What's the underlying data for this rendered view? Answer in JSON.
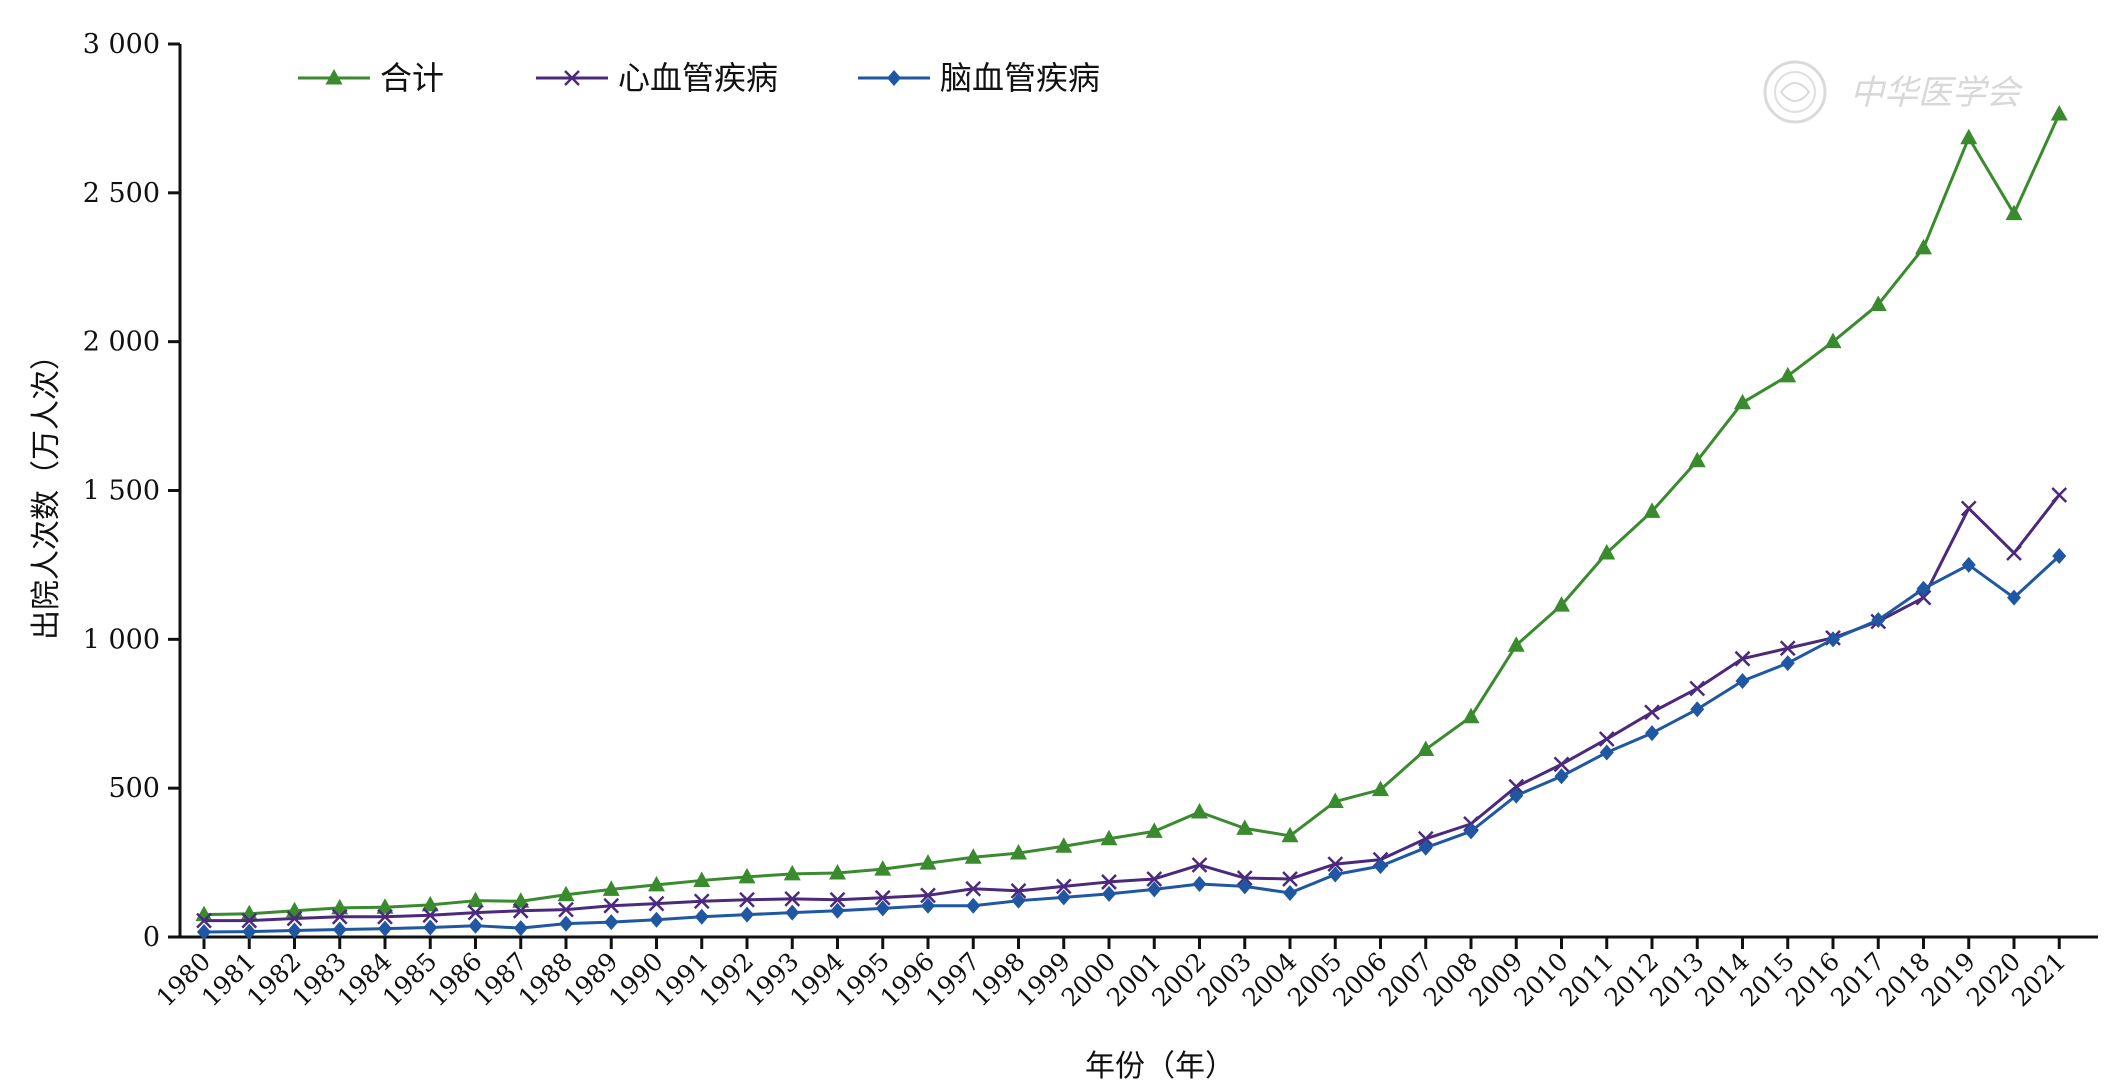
{
  "chart_data": {
    "type": "line",
    "xlabel": "年份（年）",
    "ylabel": "出院人次数（万人次）",
    "ylim": [
      0,
      3000
    ],
    "yticks": [
      0,
      500,
      1000,
      1500,
      2000,
      2500,
      3000
    ],
    "ytick_labels": [
      "0",
      "500",
      "1 000",
      "1 500",
      "2 000",
      "2 500",
      "3 000"
    ],
    "x": [
      "1980",
      "1981",
      "1982",
      "1983",
      "1984",
      "1985",
      "1986",
      "1987",
      "1988",
      "1989",
      "1990",
      "1991",
      "1992",
      "1993",
      "1994",
      "1995",
      "1996",
      "1997",
      "1998",
      "1999",
      "2000",
      "2001",
      "2002",
      "2003",
      "2004",
      "2005",
      "2006",
      "2007",
      "2008",
      "2009",
      "2010",
      "2011",
      "2012",
      "2013",
      "2014",
      "2015",
      "2016",
      "2017",
      "2018",
      "2019",
      "2020",
      "2021"
    ],
    "legend_position": "top-left",
    "grid": false,
    "series": [
      {
        "name": "合计",
        "color": "#3a8a2e",
        "marker": "triangle",
        "values": [
          75,
          78,
          88,
          98,
          100,
          108,
          122,
          120,
          142,
          160,
          175,
          190,
          202,
          212,
          215,
          228,
          248,
          268,
          282,
          305,
          330,
          355,
          420,
          365,
          340,
          455,
          495,
          630,
          740,
          980,
          1115,
          1290,
          1430,
          1600,
          1795,
          1885,
          2000,
          2125,
          2315,
          2685,
          2430,
          2765
        ]
      },
      {
        "name": "心血管疾病",
        "color": "#4b2a7e",
        "marker": "x",
        "values": [
          55,
          55,
          62,
          68,
          68,
          73,
          82,
          88,
          92,
          105,
          112,
          120,
          125,
          128,
          125,
          132,
          140,
          162,
          155,
          170,
          185,
          195,
          242,
          198,
          195,
          245,
          260,
          330,
          380,
          505,
          580,
          665,
          755,
          835,
          935,
          970,
          1005,
          1060,
          1140,
          1440,
          1290,
          1485
        ]
      },
      {
        "name": "脑血管疾病",
        "color": "#1f57a3",
        "marker": "diamond",
        "values": [
          17,
          18,
          22,
          25,
          28,
          32,
          38,
          30,
          45,
          50,
          58,
          68,
          75,
          82,
          88,
          96,
          105,
          105,
          122,
          133,
          145,
          160,
          178,
          170,
          148,
          210,
          238,
          300,
          355,
          475,
          540,
          620,
          685,
          765,
          860,
          920,
          1000,
          1065,
          1170,
          1250,
          1140,
          1280
        ]
      }
    ]
  },
  "watermark": {
    "text": "中华医学会"
  }
}
